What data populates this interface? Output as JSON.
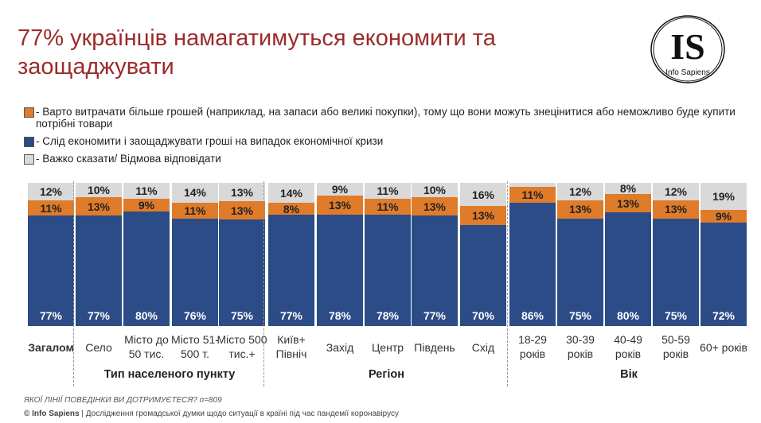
{
  "title": "77% українців намагатимуться економити та заощаджувати",
  "logo": {
    "text": "IS",
    "subtitle": "Info Sapiens"
  },
  "colors": {
    "save": "#2B4C86",
    "spend": "#E07B2A",
    "hard": "#D9D9D9",
    "title": "#9B2B2B"
  },
  "chart_data": {
    "type": "bar",
    "stacked": true,
    "title": "77% українців намагатимуться економити та заощаджувати",
    "legend_position": "top-left",
    "unit": "%",
    "categories": [
      "Загалом",
      "Село",
      "Місто до 50 тис.",
      "Місто 51-500 т.",
      "Місто 500 тис.+",
      "Київ+ Північ",
      "Захід",
      "Центр",
      "Південь",
      "Схід",
      "18-29 років",
      "30-39 років",
      "40-49 років",
      "50-59 років",
      "60+ років"
    ],
    "groups": [
      {
        "label": "",
        "from": 0,
        "to": 0
      },
      {
        "label": "Тип населеного пункту",
        "from": 1,
        "to": 4
      },
      {
        "label": "Регіон",
        "from": 5,
        "to": 9
      },
      {
        "label": "Вік",
        "from": 10,
        "to": 14
      }
    ],
    "series": [
      {
        "name": "- Слід економити і заощаджувати гроші на випадок економічної кризи",
        "key": "save",
        "values": [
          77,
          77,
          80,
          76,
          75,
          77,
          78,
          78,
          77,
          70,
          86,
          75,
          80,
          75,
          72
        ]
      },
      {
        "name": "- Варто витрачати більше грошей (наприклад, на запаси або великі покупки), тому що вони можуть знецінитися або неможливо буде купити потрібні товари",
        "key": "spend",
        "values": [
          11,
          13,
          9,
          11,
          13,
          8,
          13,
          11,
          13,
          13,
          11,
          13,
          13,
          13,
          9
        ]
      },
      {
        "name": "- Важко сказати/ Відмова відповідати",
        "key": "hard",
        "values": [
          12,
          10,
          11,
          14,
          13,
          14,
          9,
          11,
          10,
          16,
          null,
          12,
          8,
          12,
          19
        ]
      }
    ]
  },
  "question": "ЯКОЇ ЛІНІЇ ПОВЕДІНКИ ВИ ДОТРИМУЄТЕСЯ? n=809",
  "footer": {
    "brand": "© Info Sapiens",
    "text": " | Дослідження громадської думки щодо ситуації в країні під час пандемії коронавірусу"
  }
}
